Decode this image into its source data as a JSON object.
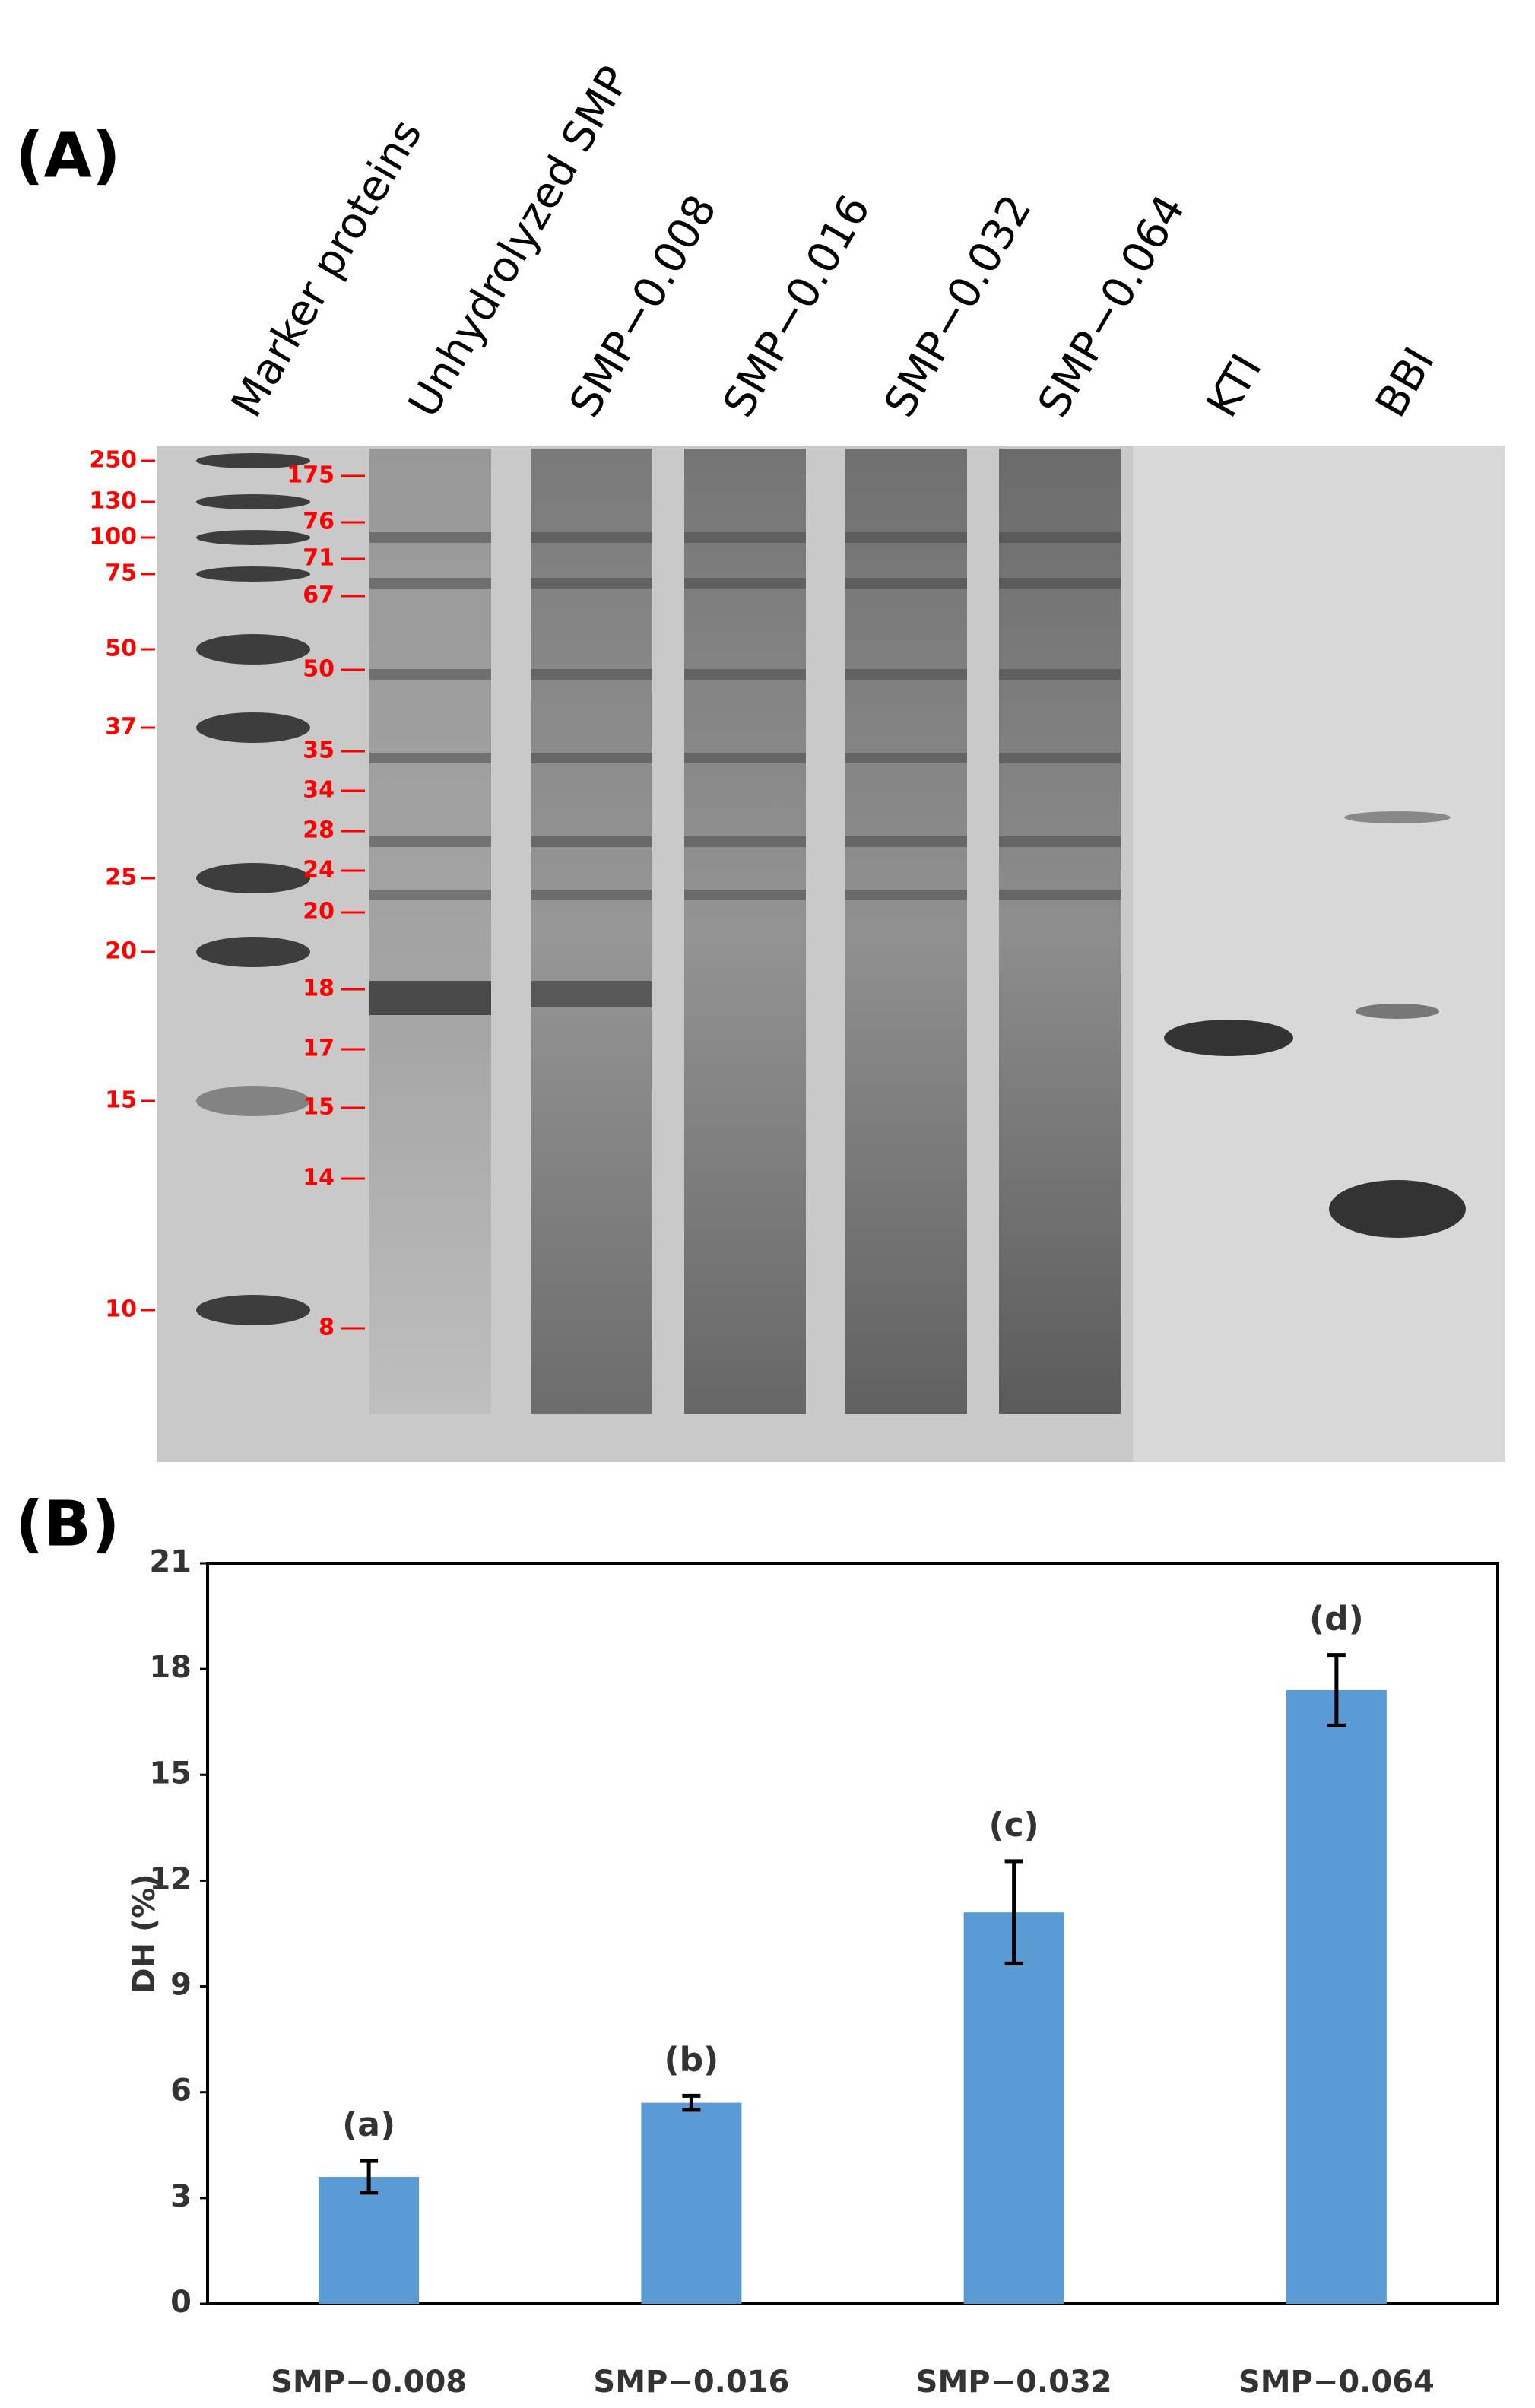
{
  "panel_a": {
    "label": "(A)",
    "lanes": [
      "Marker proteins",
      "Unhydrolyzed SMP",
      "SMP−0.008",
      "SMP−0.016",
      "SMP−0.032",
      "SMP−0.064",
      "KTI",
      "BBI"
    ],
    "markers_left": [
      250,
      130,
      100,
      75,
      50,
      37,
      25,
      20,
      15,
      10
    ],
    "markers_inner": [
      175,
      76,
      71,
      67,
      50,
      35,
      34,
      28,
      24,
      20,
      18,
      17,
      15,
      14,
      8
    ]
  },
  "chart_data": {
    "type": "bar",
    "panel_label": "(B)",
    "y_label": "DH (%)",
    "categories": [
      "SMP−0.008",
      "SMP−0.016",
      "SMP−0.032",
      "SMP−0.064"
    ],
    "values": [
      3.6,
      5.7,
      11.1,
      17.4
    ],
    "errors": [
      0.45,
      0.2,
      1.45,
      1.0
    ],
    "letters": [
      "(a)",
      "(b)",
      "(c)",
      "(d)"
    ],
    "color": "#5b9bd5",
    "ylim": [
      0,
      21
    ],
    "yticks": [
      0,
      3,
      6,
      9,
      12,
      15,
      18,
      21
    ]
  }
}
